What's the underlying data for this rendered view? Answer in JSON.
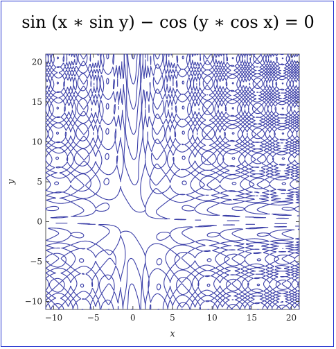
{
  "chart_data": {
    "type": "contour",
    "title": "sin (x ∗ sin y) − cos (y ∗ cos x) = 0",
    "xlabel": "x",
    "ylabel": "y",
    "xlim": [
      -11,
      21
    ],
    "ylim": [
      -11,
      21
    ],
    "xticks": [
      -10,
      -5,
      0,
      5,
      10,
      15,
      20
    ],
    "yticks": [
      -10,
      -5,
      0,
      5,
      10,
      15,
      20
    ],
    "equation": "sin(x*sin(y)) - cos(y*cos(x)) = 0",
    "grid": false,
    "line_color": "#3b3fa8"
  },
  "colors": {
    "frame": "#1f2fcf",
    "curve": "#3b3fa8"
  }
}
